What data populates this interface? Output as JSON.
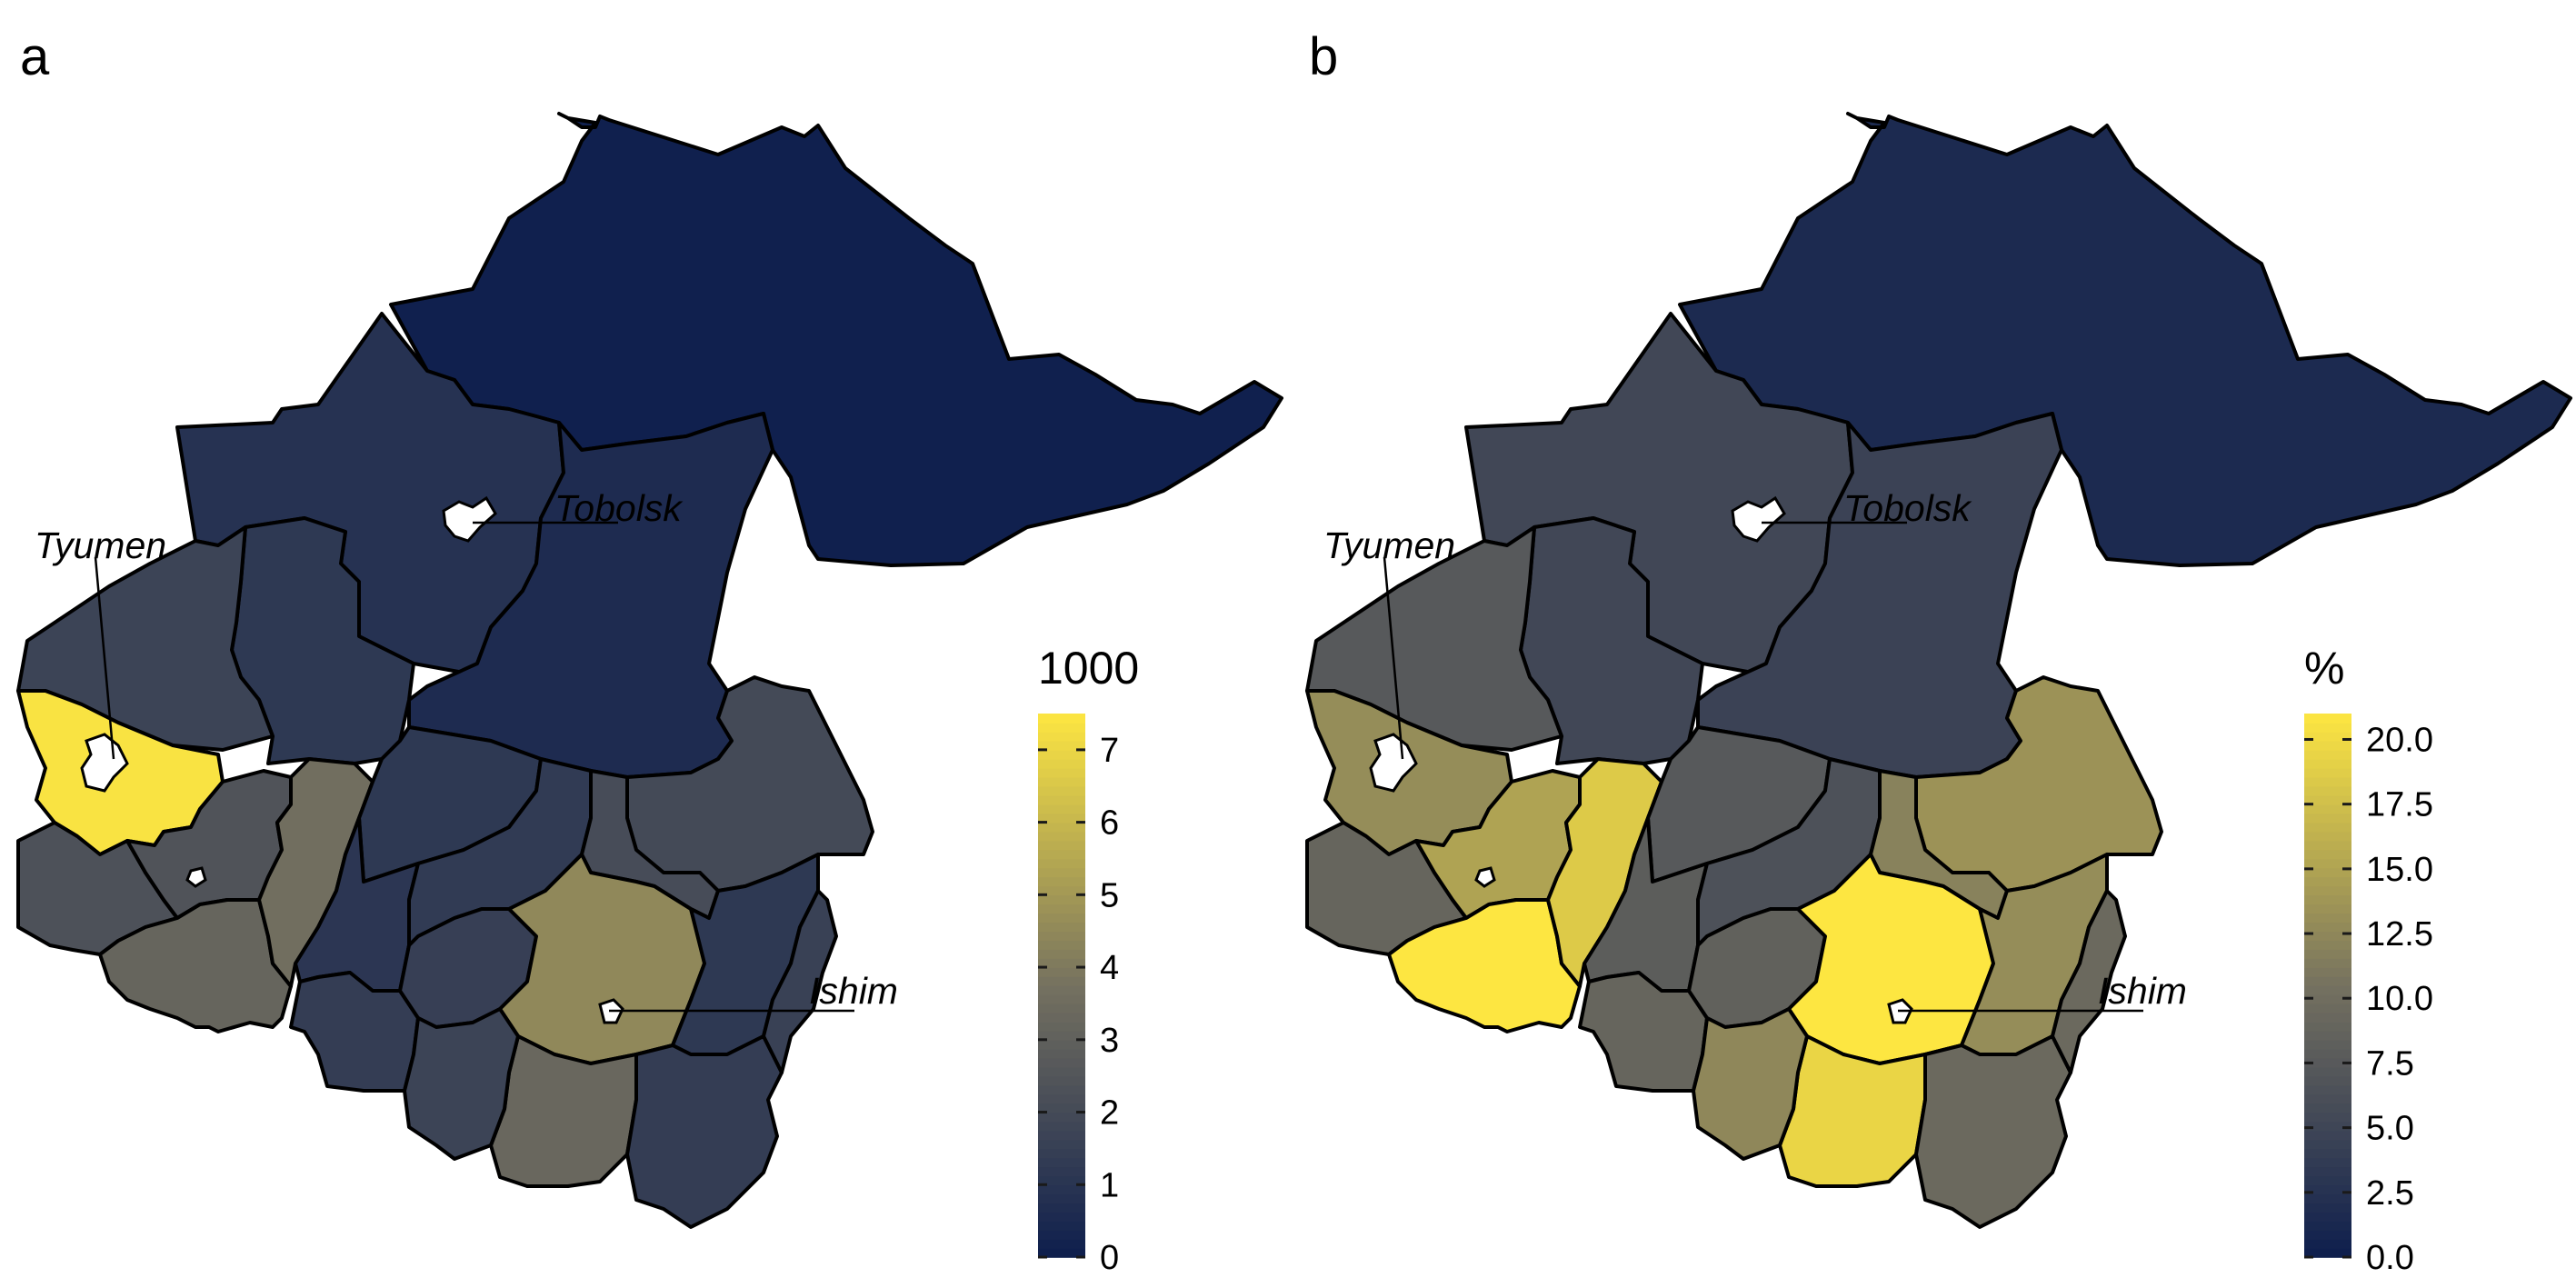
{
  "panels": [
    {
      "letter": "a",
      "legend": {
        "title": "1000",
        "min": 0,
        "max": 7.5,
        "ticks": [
          "0",
          "1",
          "2",
          "3",
          "4",
          "5",
          "6",
          "7"
        ],
        "tick_values": [
          0,
          1,
          2,
          3,
          4,
          5,
          6,
          7
        ]
      },
      "cities": [
        "Tyumen",
        "Tobolsk",
        "Ishim"
      ],
      "values": {
        "north": 0.1,
        "tobolsk_district": 0.9,
        "central_east": 0.6,
        "west_mid": 1.2,
        "west_upper": 1.7,
        "west_lower": 2.3,
        "tyumen_district": 7.4,
        "sw_mid": 2.4,
        "south_west": 3.2,
        "south_west2": 3.6,
        "sc1": 1.2,
        "sc2": 1.1,
        "sc3": 1.4,
        "sc4": 1.3,
        "sc5": 1.5,
        "east1": 2.0,
        "east2": 2.1,
        "ishim_district": 4.5,
        "se1": 1.2,
        "se2": 1.6,
        "s1": 3.3,
        "s2": 1.7,
        "s3": 1.4
      }
    },
    {
      "letter": "b",
      "legend": {
        "title": "%",
        "min": 0,
        "max": 21,
        "ticks": [
          "0.0",
          "2.5",
          "5.0",
          "7.5",
          "10.0",
          "12.5",
          "15.0",
          "17.5",
          "20.0"
        ],
        "tick_values": [
          0,
          2.5,
          5,
          7.5,
          10,
          12.5,
          15,
          17.5,
          20
        ]
      },
      "cities": [
        "Tyumen",
        "Tobolsk",
        "Ishim"
      ],
      "values": {
        "north": 1.5,
        "tobolsk_district": 5.2,
        "central_east": 4.6,
        "west_mid": 5.2,
        "west_upper": 7.5,
        "west_lower": 9.0,
        "tyumen_district": 13.0,
        "sw_mid": 15.0,
        "south_west": 21.0,
        "south_west2": 18.5,
        "sc1": 7.5,
        "sc2": 8.0,
        "sc3": 9.0,
        "sc4": 6.5,
        "sc5": 8.5,
        "east1": 13.5,
        "east2": 12.0,
        "ishim_district": 21.0,
        "se1": 13.0,
        "se2": 9.5,
        "s1": 19.5,
        "s2": 12.5,
        "s3": 9.5
      }
    }
  ],
  "colors": {
    "low": "#0d1e4d",
    "mid": "#757160",
    "high": "#fde641"
  }
}
